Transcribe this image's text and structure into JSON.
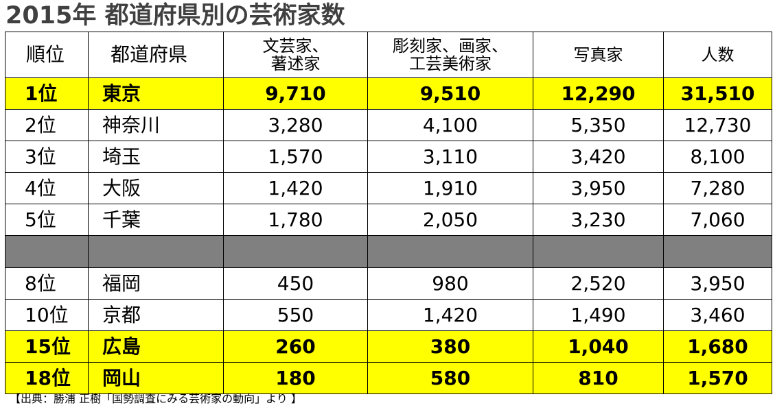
{
  "title": "2015年 都道府県別の芸術家数",
  "headers": [
    "順位",
    "都道府県",
    "文芸家、\n著述家",
    "彫刻家、画家、\n工芸美術家",
    "写真家",
    "人数"
  ],
  "rows_top": [
    {
      "rank": "1位",
      "pref": "東京",
      "v1": "9,710",
      "v2": "9,510",
      "v3": "12,290",
      "v4": "31,510",
      "highlight": true
    },
    {
      "rank": "2位",
      "pref": "神奈川",
      "v1": "3,280",
      "v2": "4,100",
      "v3": "5,350",
      "v4": "12,730",
      "highlight": false
    },
    {
      "rank": "3位",
      "pref": "埼玉",
      "v1": "1,570",
      "v2": "3,110",
      "v3": "3,420",
      "v4": "8,100",
      "highlight": false
    },
    {
      "rank": "4位",
      "pref": "大阪",
      "v1": "1,420",
      "v2": "1,910",
      "v3": "3,950",
      "v4": "7,280",
      "highlight": false
    },
    {
      "rank": "5位",
      "pref": "千葉",
      "v1": "1,780",
      "v2": "2,050",
      "v3": "3,230",
      "v4": "7,060",
      "highlight": false
    }
  ],
  "rows_bottom": [
    {
      "rank": "8位",
      "pref": "福岡",
      "v1": "450",
      "v2": "980",
      "v3": "2,520",
      "v4": "3,950",
      "highlight": false
    },
    {
      "rank": "10位",
      "pref": "京都",
      "v1": "550",
      "v2": "1,420",
      "v3": "1,490",
      "v4": "3,460",
      "highlight": false
    },
    {
      "rank": "15位",
      "pref": "広島",
      "v1": "260",
      "v2": "380",
      "v3": "1,040",
      "v4": "1,680",
      "highlight": true
    },
    {
      "rank": "18位",
      "pref": "岡山",
      "v1": "180",
      "v2": "580",
      "v3": "810",
      "v4": "1,570",
      "highlight": true
    }
  ],
  "source": "【出典：勝浦 正樹「国勢調査にみる芸術家の動向」より 】",
  "colors": {
    "highlight": "#ffff00",
    "gap": "#808080",
    "title": "#404040"
  }
}
